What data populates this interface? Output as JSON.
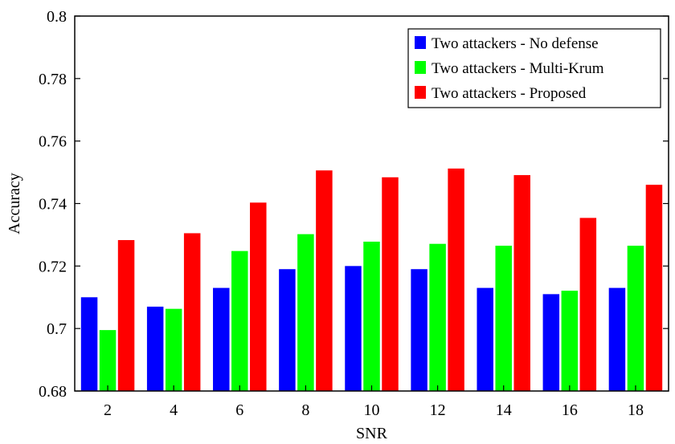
{
  "chart_data": {
    "type": "bar",
    "xlabel": "SNR",
    "ylabel": "Accuracy",
    "categories": [
      "2",
      "4",
      "6",
      "8",
      "10",
      "12",
      "14",
      "16",
      "18"
    ],
    "ylim": [
      0.68,
      0.8
    ],
    "yticks": [
      "0.68",
      "0.7",
      "0.72",
      "0.74",
      "0.76",
      "0.78",
      "0.8"
    ],
    "grid": false,
    "legend_position": "top-right",
    "series": [
      {
        "name": "Two attackers - No defense",
        "color": "#0000ff",
        "values": [
          0.71,
          0.707,
          0.713,
          0.719,
          0.72,
          0.719,
          0.713,
          0.711,
          0.713
        ]
      },
      {
        "name": "Two attackers - Multi-Krum",
        "color": "#00ff00",
        "values": [
          0.6995,
          0.7063,
          0.7248,
          0.7302,
          0.7278,
          0.7271,
          0.7265,
          0.7121,
          0.7265
        ]
      },
      {
        "name": "Two attackers - Proposed",
        "color": "#ff0000",
        "values": [
          0.7283,
          0.7305,
          0.7403,
          0.7506,
          0.7484,
          0.7512,
          0.7491,
          0.7354,
          0.746
        ]
      }
    ]
  }
}
